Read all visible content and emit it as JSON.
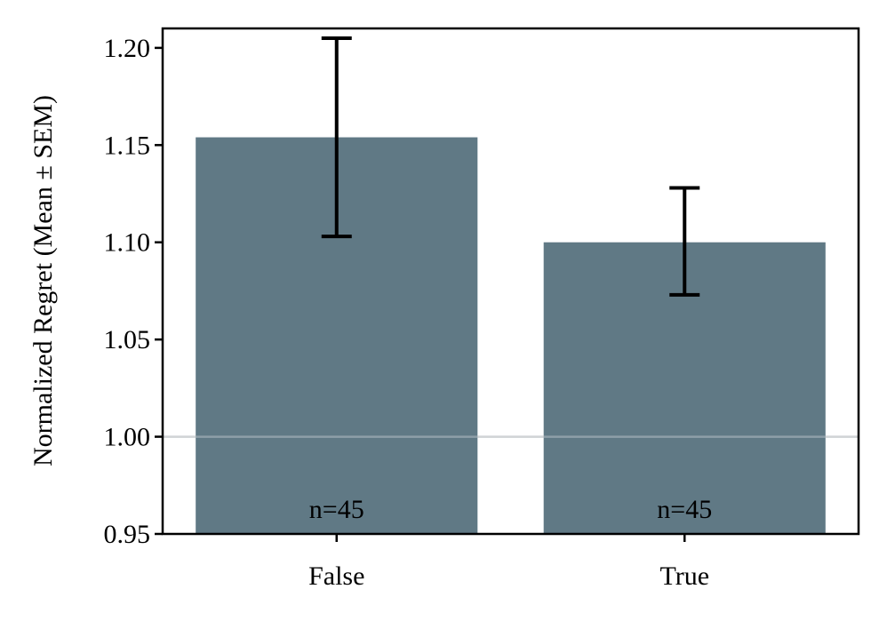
{
  "chart_data": {
    "type": "bar",
    "categories": [
      "False",
      "True"
    ],
    "values": [
      1.154,
      1.1
    ],
    "error": [
      {
        "low": 1.103,
        "high": 1.205
      },
      {
        "low": 1.073,
        "high": 1.128
      }
    ],
    "annotations": [
      "n=45",
      "n=45"
    ],
    "ylabel": "Normalized Regret (Mean ± SEM)",
    "xlabel": "",
    "ylim": [
      0.95,
      1.21
    ],
    "yticks": [
      0.95,
      1.0,
      1.05,
      1.1,
      1.15,
      1.2
    ],
    "ytick_labels": [
      "0.95",
      "1.00",
      "1.05",
      "1.10",
      "1.15",
      "1.20"
    ],
    "reference_line": 1.0,
    "grid": false,
    "colors": {
      "bar": "#607985",
      "error_bar": "#000000",
      "reference_line": "#d9d9d9"
    }
  }
}
